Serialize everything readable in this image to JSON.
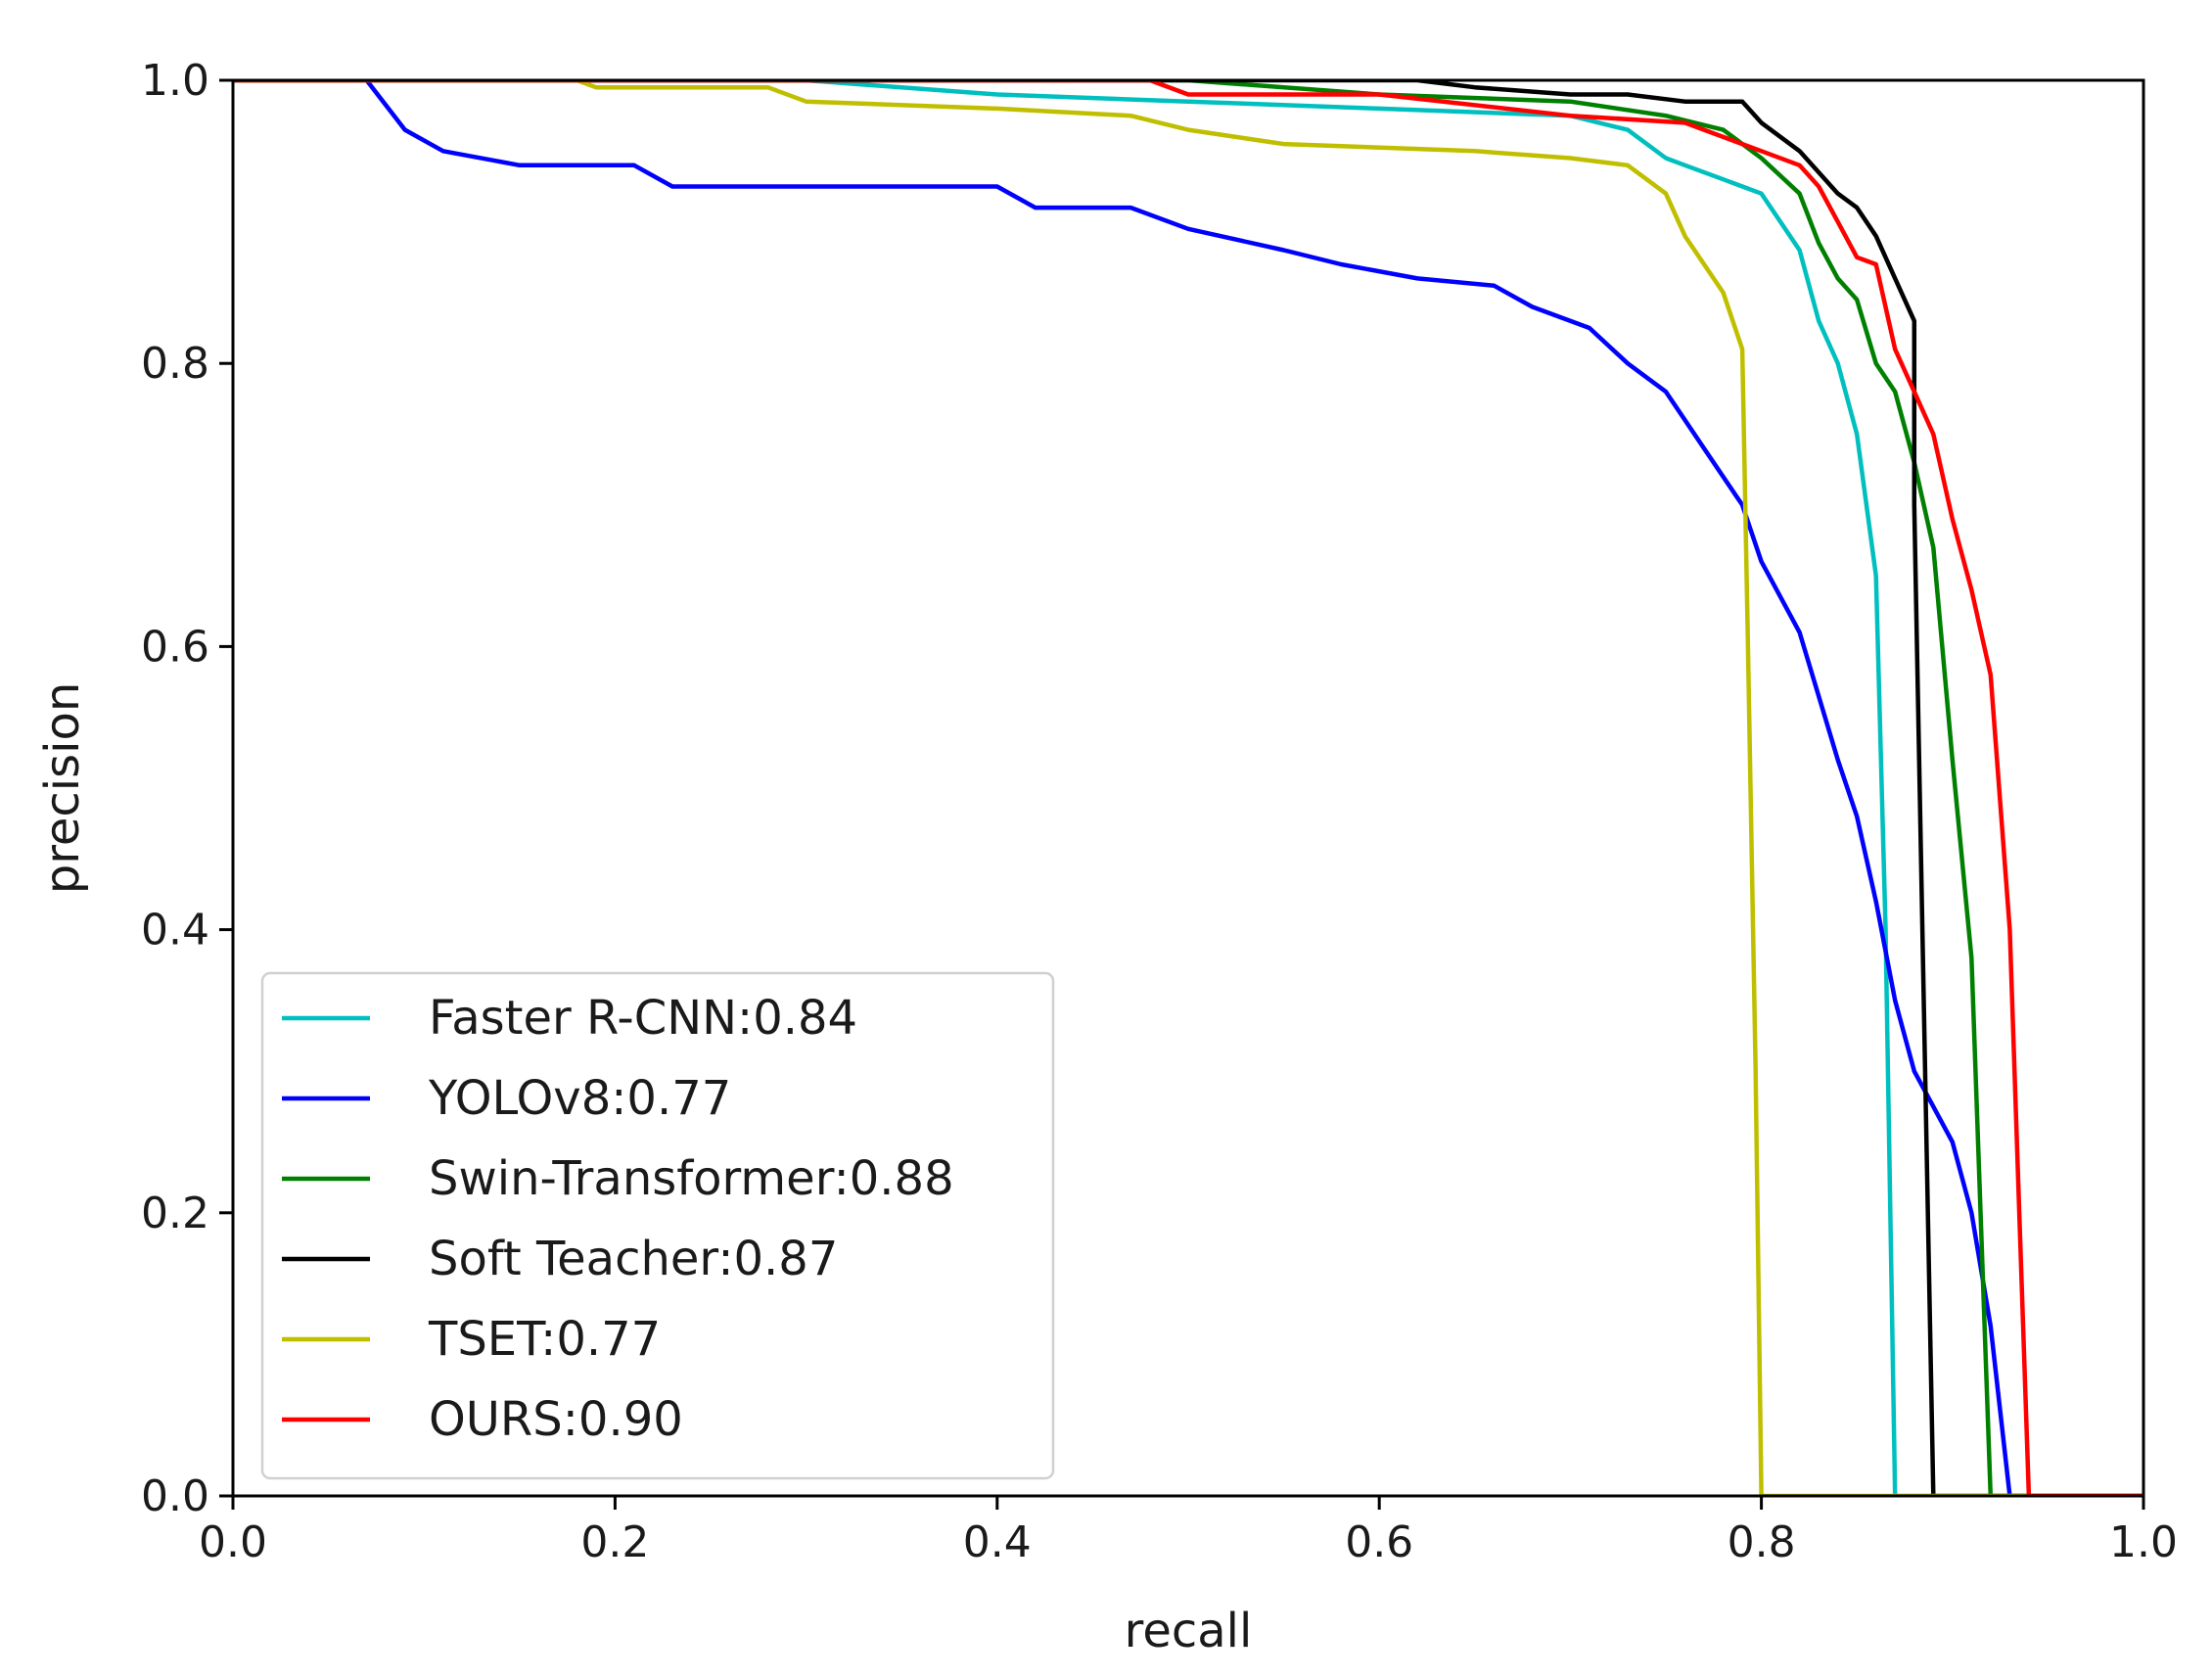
{
  "chart_data": {
    "type": "line",
    "title": "",
    "xlabel": "recall",
    "ylabel": "precision",
    "xlim": [
      0.0,
      1.0
    ],
    "ylim": [
      0.0,
      1.0
    ],
    "xticks": [
      0.0,
      0.2,
      0.4,
      0.6,
      0.8,
      1.0
    ],
    "yticks": [
      0.0,
      0.2,
      0.4,
      0.6,
      0.8,
      1.0
    ],
    "xtick_labels": [
      "0.0",
      "0.2",
      "0.4",
      "0.6",
      "0.8",
      "1.0"
    ],
    "ytick_labels": [
      "0.0",
      "0.2",
      "0.4",
      "0.6",
      "0.8",
      "1.0"
    ],
    "grid": false,
    "legend_position": "bottom-left",
    "series": [
      {
        "name": "Faster R-CNN:0.84",
        "color": "#00bfbf",
        "points": [
          [
            0.0,
            1.0
          ],
          [
            0.3,
            1.0
          ],
          [
            0.4,
            0.99
          ],
          [
            0.5,
            0.985
          ],
          [
            0.6,
            0.98
          ],
          [
            0.7,
            0.975
          ],
          [
            0.73,
            0.965
          ],
          [
            0.75,
            0.945
          ],
          [
            0.76,
            0.94
          ],
          [
            0.78,
            0.93
          ],
          [
            0.8,
            0.92
          ],
          [
            0.82,
            0.88
          ],
          [
            0.83,
            0.83
          ],
          [
            0.84,
            0.8
          ],
          [
            0.85,
            0.75
          ],
          [
            0.86,
            0.65
          ],
          [
            0.865,
            0.4
          ],
          [
            0.87,
            0.0
          ],
          [
            1.0,
            0.0
          ]
        ]
      },
      {
        "name": "YOLOv8:0.77",
        "color": "#0000ff",
        "points": [
          [
            0.0,
            1.0
          ],
          [
            0.07,
            1.0
          ],
          [
            0.09,
            0.965
          ],
          [
            0.11,
            0.95
          ],
          [
            0.15,
            0.94
          ],
          [
            0.21,
            0.94
          ],
          [
            0.23,
            0.925
          ],
          [
            0.4,
            0.925
          ],
          [
            0.42,
            0.91
          ],
          [
            0.47,
            0.91
          ],
          [
            0.5,
            0.895
          ],
          [
            0.55,
            0.88
          ],
          [
            0.58,
            0.87
          ],
          [
            0.62,
            0.86
          ],
          [
            0.66,
            0.855
          ],
          [
            0.68,
            0.84
          ],
          [
            0.71,
            0.825
          ],
          [
            0.73,
            0.8
          ],
          [
            0.75,
            0.78
          ],
          [
            0.77,
            0.74
          ],
          [
            0.79,
            0.7
          ],
          [
            0.8,
            0.66
          ],
          [
            0.82,
            0.61
          ],
          [
            0.84,
            0.52
          ],
          [
            0.85,
            0.48
          ],
          [
            0.86,
            0.42
          ],
          [
            0.87,
            0.35
          ],
          [
            0.88,
            0.3
          ],
          [
            0.9,
            0.25
          ],
          [
            0.91,
            0.2
          ],
          [
            0.92,
            0.12
          ],
          [
            0.93,
            0.0
          ],
          [
            1.0,
            0.0
          ]
        ]
      },
      {
        "name": "Swin-Transformer:0.88",
        "color": "#008000",
        "points": [
          [
            0.0,
            1.0
          ],
          [
            0.5,
            1.0
          ],
          [
            0.6,
            0.99
          ],
          [
            0.7,
            0.985
          ],
          [
            0.75,
            0.975
          ],
          [
            0.78,
            0.965
          ],
          [
            0.8,
            0.945
          ],
          [
            0.82,
            0.92
          ],
          [
            0.83,
            0.885
          ],
          [
            0.84,
            0.86
          ],
          [
            0.85,
            0.845
          ],
          [
            0.86,
            0.8
          ],
          [
            0.87,
            0.78
          ],
          [
            0.88,
            0.73
          ],
          [
            0.89,
            0.67
          ],
          [
            0.9,
            0.52
          ],
          [
            0.91,
            0.38
          ],
          [
            0.92,
            0.0
          ],
          [
            1.0,
            0.0
          ]
        ]
      },
      {
        "name": "Soft Teacher:0.87",
        "color": "#000000",
        "points": [
          [
            0.0,
            1.0
          ],
          [
            0.62,
            1.0
          ],
          [
            0.65,
            0.995
          ],
          [
            0.7,
            0.99
          ],
          [
            0.73,
            0.99
          ],
          [
            0.76,
            0.985
          ],
          [
            0.79,
            0.985
          ],
          [
            0.8,
            0.97
          ],
          [
            0.82,
            0.95
          ],
          [
            0.84,
            0.92
          ],
          [
            0.85,
            0.91
          ],
          [
            0.86,
            0.89
          ],
          [
            0.87,
            0.86
          ],
          [
            0.88,
            0.83
          ],
          [
            0.88,
            0.7
          ],
          [
            0.885,
            0.35
          ],
          [
            0.89,
            0.0
          ],
          [
            1.0,
            0.0
          ]
        ]
      },
      {
        "name": "TSET:0.77",
        "color": "#bfbf00",
        "points": [
          [
            0.0,
            1.0
          ],
          [
            0.18,
            1.0
          ],
          [
            0.19,
            0.995
          ],
          [
            0.28,
            0.995
          ],
          [
            0.3,
            0.985
          ],
          [
            0.4,
            0.98
          ],
          [
            0.47,
            0.975
          ],
          [
            0.5,
            0.965
          ],
          [
            0.55,
            0.955
          ],
          [
            0.65,
            0.95
          ],
          [
            0.7,
            0.945
          ],
          [
            0.73,
            0.94
          ],
          [
            0.75,
            0.92
          ],
          [
            0.76,
            0.89
          ],
          [
            0.78,
            0.85
          ],
          [
            0.79,
            0.81
          ],
          [
            0.793,
            0.6
          ],
          [
            0.797,
            0.3
          ],
          [
            0.8,
            0.0
          ],
          [
            1.0,
            0.0
          ]
        ]
      },
      {
        "name": "OURS:0.90",
        "color": "#ff0000",
        "points": [
          [
            0.0,
            1.0
          ],
          [
            0.48,
            1.0
          ],
          [
            0.5,
            0.99
          ],
          [
            0.6,
            0.99
          ],
          [
            0.7,
            0.975
          ],
          [
            0.76,
            0.97
          ],
          [
            0.79,
            0.955
          ],
          [
            0.8,
            0.95
          ],
          [
            0.82,
            0.94
          ],
          [
            0.83,
            0.925
          ],
          [
            0.84,
            0.9
          ],
          [
            0.85,
            0.875
          ],
          [
            0.86,
            0.87
          ],
          [
            0.87,
            0.81
          ],
          [
            0.88,
            0.78
          ],
          [
            0.89,
            0.75
          ],
          [
            0.9,
            0.69
          ],
          [
            0.91,
            0.64
          ],
          [
            0.92,
            0.58
          ],
          [
            0.93,
            0.4
          ],
          [
            0.935,
            0.2
          ],
          [
            0.94,
            0.0
          ],
          [
            1.0,
            0.0
          ]
        ]
      }
    ]
  }
}
